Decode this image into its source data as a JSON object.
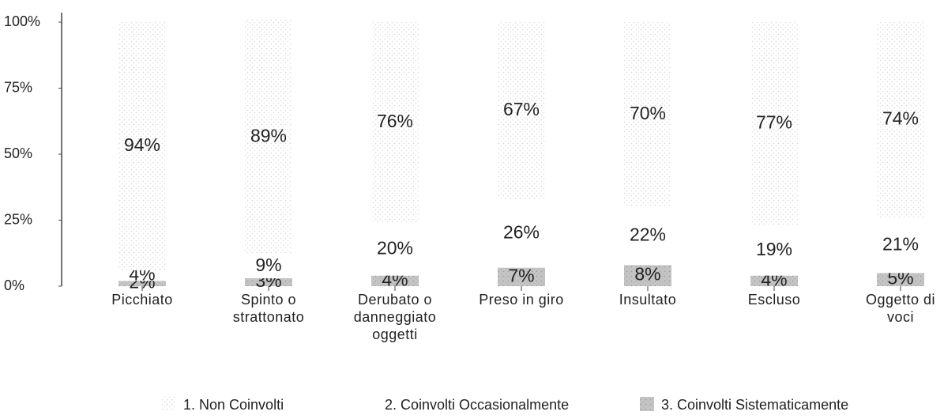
{
  "chart_data": {
    "type": "stacked_bar",
    "categories": [
      "Picchiato",
      "Spinto o strattonato",
      "Derubato o danneggiato oggetti",
      "Preso in giro",
      "Insultato",
      "Escluso",
      "Oggetto di voci"
    ],
    "series": [
      {
        "name": "3. Coinvolti Sistematicamente",
        "color": "#c4c4c4",
        "values": [
          2,
          3,
          4,
          7,
          8,
          4,
          5
        ],
        "value_labels": [
          "2%",
          "3%",
          "4%",
          "7%",
          "8%",
          "4%",
          "5%"
        ]
      },
      {
        "name": "2. Coinvolti Occasionalmente",
        "color": "#ffffff",
        "values": [
          4,
          9,
          20,
          26,
          22,
          19,
          21
        ],
        "value_labels": [
          "4%",
          "9%",
          "20%",
          "26%",
          "22%",
          "19%",
          "21%"
        ]
      },
      {
        "name": "1. Non Coinvolti",
        "color": "#d8d8d8",
        "values": [
          94,
          89,
          76,
          67,
          70,
          77,
          74
        ],
        "value_labels": [
          "94%",
          "89%",
          "76%",
          "67%",
          "70%",
          "77%",
          "74%"
        ]
      }
    ],
    "ylim": [
      0,
      100
    ],
    "yticks": [
      {
        "value": 0,
        "label": "0%"
      },
      {
        "value": 25,
        "label": "25%"
      },
      {
        "value": 50,
        "label": "50%"
      },
      {
        "value": 75,
        "label": "75%"
      },
      {
        "value": 100,
        "label": "100%"
      }
    ],
    "grid": false
  }
}
